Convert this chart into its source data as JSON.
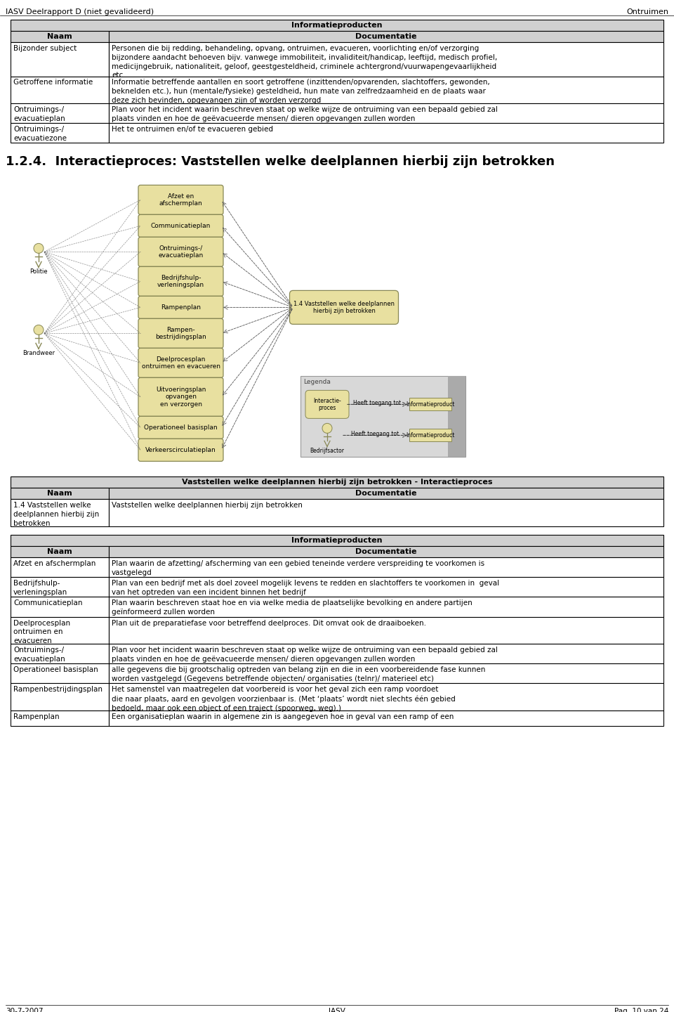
{
  "header_left": "IASV Deelrapport D (niet gevalideerd)",
  "header_right": "Ontruimen",
  "footer_left": "30-7-2007",
  "footer_center": "IASV",
  "footer_right": "Pag. 10 van 24",
  "table1_title": "Informatieproducten",
  "table1_headers": [
    "Naam",
    "Documentatie"
  ],
  "table1_rows": [
    [
      "Bijzonder subject",
      "Personen die bij redding, behandeling, opvang, ontruimen, evacueren, voorlichting en/of verzorging\nbijzondere aandacht behoeven bijv. vanwege immobiliteit, invaliditeit/handicap, leeftijd, medisch profiel,\nmedicijngebruik, nationaliteit, geloof, geestgesteldheid, criminele achtergrond/vuurwapengevaarlijkheid\netc."
    ],
    [
      "Getroffene informatie",
      "Informatie betreffende aantallen en soort getroffene (inzittenden/opvarenden, slachtoffers, gewonden,\nbeknelden etc.), hun (mentale/fysieke) gesteldheid, hun mate van zelfredzaamheid en de plaats waar\ndeze zich bevinden, opgevangen zijn of worden verzorgd"
    ],
    [
      "Ontruimings-/\nevacuatieplan",
      "Plan voor het incident waarin beschreven staat op welke wijze de ontruiming van een bepaald gebied zal\nplaats vinden en hoe de geëvacueerde mensen/ dieren opgevangen zullen worden"
    ],
    [
      "Ontruimings-/\nevacuatiezone",
      "Het te ontruimen en/of te evacueren gebied"
    ]
  ],
  "section_title": "1.2.4.  Interactieproces: Vaststellen welke deelplannen hierbij zijn betrokken",
  "diagram_nodes_center": [
    "Afzet en\nafschermplan",
    "Communicatieplan",
    "Ontruimings-/\nevacuatieplan",
    "Bedrijfshulp-\nverleningsplan",
    "Rampenplan",
    "Rampen-\nbestrijdingsplan",
    "Deelprocesplan\nontruimen en evacueren",
    "Uitvoeringsplan\nopvangen\nen verzorgen",
    "Operationeel basisplan",
    "Verkeerscirculatieplan"
  ],
  "diagram_process_box": "1.4 Vaststellen welke deelplannen\nhierbij zijn betrokken",
  "table2_title": "Vaststellen welke deelplannen hierbij zijn betrokken - Interactieproces",
  "table2_headers": [
    "Naam",
    "Documentatie"
  ],
  "table2_rows": [
    [
      "1.4 Vaststellen welke\ndeelplannen hierbij zijn\nbetrokken",
      "Vaststellen welke deelplannen hierbij zijn betrokken"
    ]
  ],
  "table3_title": "Informatieproducten",
  "table3_headers": [
    "Naam",
    "Documentatie"
  ],
  "table3_rows": [
    [
      "Afzet en afschermplan",
      "Plan waarin de afzetting/ afscherming van een gebied teneinde verdere verspreiding te voorkomen is\nvastgelegd"
    ],
    [
      "Bedrijfshulp-\nverleningsplan",
      "Plan van een bedrijf met als doel zoveel mogelijk levens te redden en slachtoffers te voorkomen in  geval\nvan het optreden van een incident binnen het bedrijf"
    ],
    [
      "Communicatieplan",
      "Plan waarin beschreven staat hoe en via welke media de plaatselijke bevolking en andere partijen\ngeïnformeerd zullen worden"
    ],
    [
      "Deelprocesplan\nontruimen en\nevacueren",
      "Plan uit de preparatiefase voor betreffend deelproces. Dit omvat ook de draaiboeken."
    ],
    [
      "Ontruimings-/\nevacuatieplan",
      "Plan voor het incident waarin beschreven staat op welke wijze de ontruiming van een bepaald gebied zal\nplaats vinden en hoe de geëvacueerde mensen/ dieren opgevangen zullen worden"
    ],
    [
      "Operationeel basisplan",
      "alle gegevens die bij grootschalig optreden van belang zijn en die in een voorbereidende fase kunnen\nworden vastgelegd (Gegevens betreffende objecten/ organisaties (telnr)/ materieel etc)"
    ],
    [
      "Rampenbestrijdingsplan",
      "Het samenstel van maatregelen dat voorbereid is voor het geval zich een ramp voordoet\ndie naar plaats, aard en gevolgen voorzienbaar is. (Met ‘plaats’ wordt niet slechts één gebied\nbedoeld, maar ook een object of een traject (spoorweg, weg).)"
    ],
    [
      "Rampenplan",
      "Een organisatieplan waarin in algemene zin is aangegeven hoe in geval van een ramp of een"
    ]
  ],
  "node_fill": "#d8d090",
  "node_stroke": "#888855",
  "node_fill_light": "#e8e0a0",
  "table_header_fill": "#d0d0d0",
  "body_font_size": 7.5,
  "section_title_size": 13
}
